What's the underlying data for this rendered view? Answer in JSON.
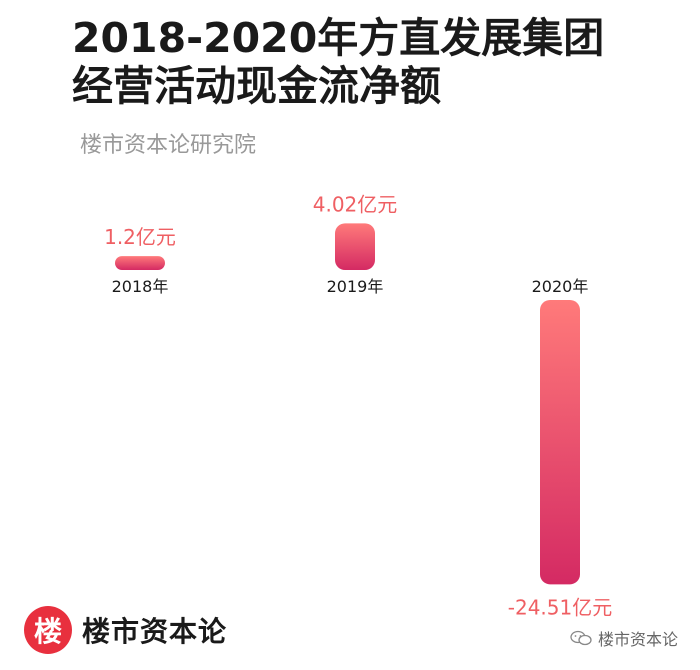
{
  "title_line1": "2018-2020年方直发展集团",
  "title_line2": "经营活动现金流净额",
  "subtitle": "楼市资本论研究院",
  "footer": {
    "logo_char": "楼",
    "brand": "楼市资本论",
    "watermark": "楼市资本论"
  },
  "colors": {
    "bar_top": "#ff7a7a",
    "bar_bottom": "#d42a63",
    "value_label": "#ef5f63",
    "year_label": "#1a1a1a",
    "logo_bg": "#e8303e"
  },
  "chart_data": {
    "type": "bar",
    "categories": [
      "2018年",
      "2019年",
      "2020年"
    ],
    "values": [
      1.2,
      4.02,
      -24.51
    ],
    "value_labels": [
      "1.2亿元",
      "4.02亿元",
      "-24.51亿元"
    ],
    "unit": "亿元",
    "title": "2018-2020年方直发展集团经营活动现金流净额"
  }
}
